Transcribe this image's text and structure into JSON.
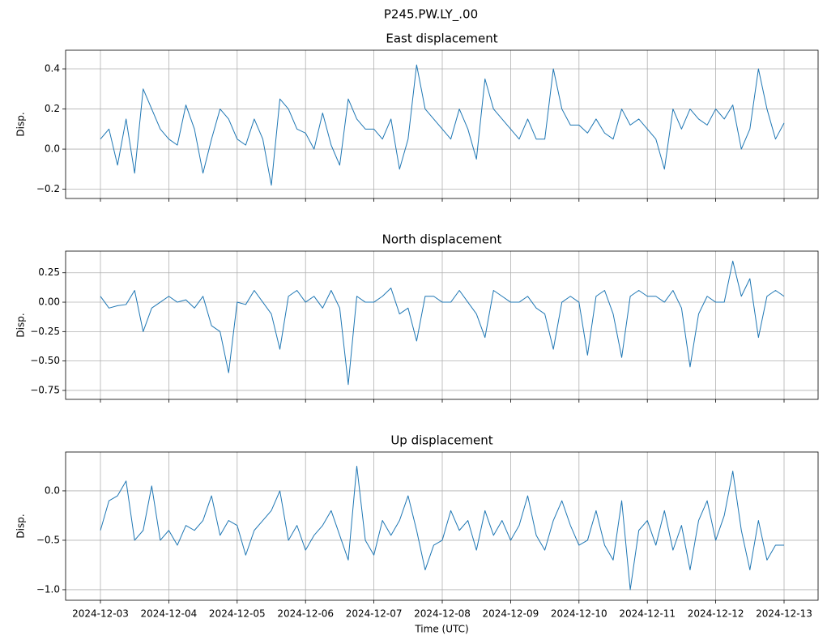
{
  "title": "P245.PW.LY_.00",
  "chart_data": [
    {
      "type": "line",
      "title": "East displacement",
      "ylabel": "Disp.",
      "color": "#1f77b4",
      "grid": true,
      "ylim": [
        -0.246,
        0.493
      ],
      "yticks": [
        {
          "value": -0.2,
          "label": "−0.2"
        },
        {
          "value": 0,
          "label": "0.0"
        },
        {
          "value": 0.2,
          "label": "0.2"
        },
        {
          "value": 0.4,
          "label": "0.4"
        }
      ],
      "values": [
        0.05,
        0.1,
        -0.08,
        0.15,
        -0.12,
        0.3,
        0.2,
        0.1,
        0.05,
        0.02,
        0.22,
        0.1,
        -0.12,
        0.05,
        0.2,
        0.15,
        0.05,
        0.02,
        0.15,
        0.05,
        -0.18,
        0.25,
        0.2,
        0.1,
        0.08,
        0.0,
        0.18,
        0.02,
        -0.08,
        0.25,
        0.15,
        0.1,
        0.1,
        0.05,
        0.15,
        -0.1,
        0.05,
        0.42,
        0.2,
        0.15,
        0.1,
        0.05,
        0.2,
        0.1,
        -0.05,
        0.35,
        0.2,
        0.15,
        0.1,
        0.05,
        0.15,
        0.05,
        0.05,
        0.4,
        0.2,
        0.12,
        0.12,
        0.08,
        0.15,
        0.08,
        0.05,
        0.2,
        0.12,
        0.15,
        0.1,
        0.05,
        -0.1,
        0.2,
        0.1,
        0.2,
        0.15,
        0.12,
        0.2,
        0.15,
        0.22,
        0.0,
        0.1,
        0.4,
        0.2,
        0.05,
        0.13
      ]
    },
    {
      "type": "line",
      "title": "North displacement",
      "ylabel": "Disp.",
      "color": "#1f77b4",
      "grid": true,
      "ylim": [
        -0.826,
        0.434
      ],
      "yticks": [
        {
          "value": -0.75,
          "label": "−0.75"
        },
        {
          "value": -0.5,
          "label": "−0.50"
        },
        {
          "value": -0.25,
          "label": "−0.25"
        },
        {
          "value": 0,
          "label": "0.00"
        },
        {
          "value": 0.25,
          "label": "0.25"
        }
      ],
      "values": [
        0.05,
        -0.05,
        -0.03,
        -0.02,
        0.1,
        -0.25,
        -0.05,
        0.0,
        0.05,
        0.0,
        0.02,
        -0.05,
        0.05,
        -0.2,
        -0.25,
        -0.6,
        0.0,
        -0.02,
        0.1,
        0.0,
        -0.1,
        -0.4,
        0.05,
        0.1,
        0.0,
        0.05,
        -0.05,
        0.1,
        -0.05,
        -0.7,
        0.05,
        0.0,
        0.0,
        0.05,
        0.12,
        -0.1,
        -0.05,
        -0.33,
        0.05,
        0.05,
        0.0,
        0.0,
        0.1,
        0.0,
        -0.1,
        -0.3,
        0.1,
        0.05,
        0.0,
        0.0,
        0.05,
        -0.05,
        -0.1,
        -0.4,
        0.0,
        0.05,
        0.0,
        -0.45,
        0.05,
        0.1,
        -0.1,
        -0.47,
        0.05,
        0.1,
        0.05,
        0.05,
        0.0,
        0.1,
        -0.05,
        -0.55,
        -0.1,
        0.05,
        0.0,
        0.0,
        0.35,
        0.05,
        0.2,
        -0.3,
        0.05,
        0.1,
        0.05
      ]
    },
    {
      "type": "line",
      "title": "Up displacement",
      "ylabel": "Disp.",
      "xlabel": "Time (UTC)",
      "color": "#1f77b4",
      "grid": true,
      "ylim": [
        -1.107,
        0.393
      ],
      "yticks": [
        {
          "value": -1.0,
          "label": "−1.0"
        },
        {
          "value": -0.5,
          "label": "−0.5"
        },
        {
          "value": 0,
          "label": "0.0"
        }
      ],
      "categories": [
        "2024-12-03",
        null,
        null,
        null,
        null,
        null,
        null,
        null,
        "2024-12-04",
        null,
        null,
        null,
        null,
        null,
        null,
        null,
        "2024-12-05",
        null,
        null,
        null,
        null,
        null,
        null,
        null,
        "2024-12-06",
        null,
        null,
        null,
        null,
        null,
        null,
        null,
        "2024-12-07",
        null,
        null,
        null,
        null,
        null,
        null,
        null,
        "2024-12-08",
        null,
        null,
        null,
        null,
        null,
        null,
        null,
        "2024-12-09",
        null,
        null,
        null,
        null,
        null,
        null,
        null,
        "2024-12-10",
        null,
        null,
        null,
        null,
        null,
        null,
        null,
        "2024-12-11",
        null,
        null,
        null,
        null,
        null,
        null,
        null,
        "2024-12-12",
        null,
        null,
        null,
        null,
        null,
        null,
        null,
        "2024-12-13"
      ],
      "values": [
        -0.4,
        -0.1,
        -0.05,
        0.1,
        -0.5,
        -0.4,
        0.05,
        -0.5,
        -0.4,
        -0.55,
        -0.35,
        -0.4,
        -0.3,
        -0.05,
        -0.45,
        -0.3,
        -0.35,
        -0.65,
        -0.4,
        -0.3,
        -0.2,
        0.0,
        -0.5,
        -0.35,
        -0.6,
        -0.45,
        -0.35,
        -0.2,
        -0.45,
        -0.7,
        0.25,
        -0.5,
        -0.65,
        -0.3,
        -0.45,
        -0.3,
        -0.05,
        -0.4,
        -0.8,
        -0.55,
        -0.5,
        -0.2,
        -0.4,
        -0.3,
        -0.6,
        -0.2,
        -0.45,
        -0.3,
        -0.5,
        -0.35,
        -0.05,
        -0.45,
        -0.6,
        -0.3,
        -0.1,
        -0.35,
        -0.55,
        -0.5,
        -0.2,
        -0.55,
        -0.7,
        -0.1,
        -1.0,
        -0.4,
        -0.3,
        -0.55,
        -0.2,
        -0.6,
        -0.35,
        -0.8,
        -0.3,
        -0.1,
        -0.5,
        -0.25,
        0.2,
        -0.4,
        -0.8,
        -0.3,
        -0.7,
        -0.55,
        -0.55
      ]
    }
  ]
}
